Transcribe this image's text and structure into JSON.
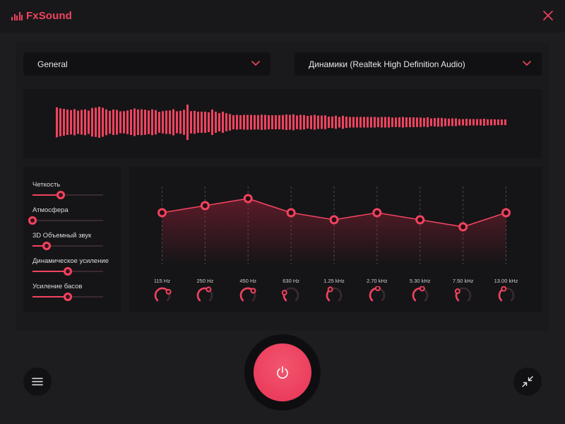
{
  "app": {
    "title": "FxSound",
    "accent": "#f0435f",
    "background": "#1d1d1f"
  },
  "titlebar": {
    "close_icon": "close-icon"
  },
  "preset_dropdown": {
    "value": "General",
    "icon": "chevron-down-icon"
  },
  "output_dropdown": {
    "value": "Динамики (Realtek High Definition Audio)",
    "icon": "chevron-down-icon"
  },
  "visualizer": {
    "bar_levels": [
      0.85,
      0.79,
      0.76,
      0.72,
      0.69,
      0.74,
      0.66,
      0.7,
      0.73,
      0.66,
      0.81,
      0.83,
      0.88,
      0.82,
      0.73,
      0.65,
      0.72,
      0.7,
      0.62,
      0.63,
      0.67,
      0.72,
      0.78,
      0.72,
      0.73,
      0.71,
      0.67,
      0.73,
      0.69,
      0.59,
      0.63,
      0.66,
      0.67,
      0.74,
      0.62,
      0.65,
      0.71,
      1.0,
      0.63,
      0.65,
      0.6,
      0.6,
      0.6,
      0.56,
      0.72,
      0.6,
      0.52,
      0.6,
      0.51,
      0.47,
      0.4,
      0.42,
      0.4,
      0.42,
      0.42,
      0.42,
      0.41,
      0.41,
      0.43,
      0.42,
      0.4,
      0.4,
      0.4,
      0.4,
      0.41,
      0.44,
      0.42,
      0.45,
      0.39,
      0.42,
      0.41,
      0.36,
      0.39,
      0.42,
      0.38,
      0.38,
      0.39,
      0.32,
      0.33,
      0.37,
      0.3,
      0.37,
      0.32,
      0.3,
      0.3,
      0.3,
      0.3,
      0.3,
      0.3,
      0.3,
      0.3,
      0.28,
      0.3,
      0.3,
      0.3,
      0.27,
      0.27,
      0.28,
      0.3,
      0.28,
      0.28,
      0.28,
      0.27,
      0.27,
      0.25,
      0.28,
      0.22,
      0.24,
      0.25,
      0.25,
      0.22,
      0.21,
      0.22,
      0.22,
      0.18,
      0.18,
      0.2,
      0.18,
      0.18,
      0.18,
      0.18,
      0.2,
      0.17,
      0.17,
      0.17,
      0.16,
      0.16,
      0.16
    ]
  },
  "effects": [
    {
      "label": "Четкость",
      "value": 0.4
    },
    {
      "label": "Атмосфера",
      "value": 0.0
    },
    {
      "label": "3D Объемный звук",
      "value": 0.2
    },
    {
      "label": "Динамическое усиление",
      "value": 0.5
    },
    {
      "label": "Усиление басов",
      "value": 0.5
    }
  ],
  "equalizer": {
    "bands": [
      {
        "freq": "115 Hz",
        "level": 0.48,
        "knob": 0.72
      },
      {
        "freq": "250 Hz",
        "level": 0.56,
        "knob": 0.62
      },
      {
        "freq": "450 Hz",
        "level": 0.64,
        "knob": 0.68
      },
      {
        "freq": "630 Hz",
        "level": 0.48,
        "knob": 0.25
      },
      {
        "freq": "1.25 kHz",
        "level": 0.4,
        "knob": 0.38
      },
      {
        "freq": "2.70 kHz",
        "level": 0.48,
        "knob": 0.52
      },
      {
        "freq": "5.30 kHz",
        "level": 0.4,
        "knob": 0.56
      },
      {
        "freq": "7.50 kHz",
        "level": 0.32,
        "knob": 0.3
      },
      {
        "freq": "13.00 kHz",
        "level": 0.48,
        "knob": 0.42
      }
    ]
  },
  "controls": {
    "power_icon": "power-icon",
    "menu_icon": "hamburger-menu-icon",
    "minimize_icon": "collapse-arrows-icon"
  }
}
